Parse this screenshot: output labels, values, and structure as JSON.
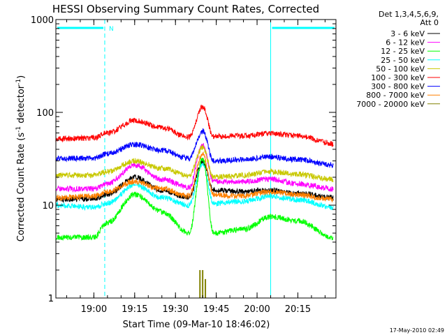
{
  "chart_data": {
    "type": "line",
    "title": "HESSI Observing Summary Count Rates, Corrected",
    "xlabel": "Start Time (09-Mar-10 18:46:02)",
    "ylabel_parts": [
      "Corrected Count Rate (s",
      "-1",
      " detector",
      "-1",
      ")"
    ],
    "x_scale": "time",
    "xlim": [
      "18:46:02",
      "20:29:00"
    ],
    "ylim": [
      1,
      1000
    ],
    "yscale": "log",
    "x_ticks": [
      "19:00",
      "19:15",
      "19:30",
      "19:45",
      "20:00",
      "20:15"
    ],
    "y_ticks": [
      {
        "value": 1,
        "label": "1"
      },
      {
        "value": 10,
        "label": "10"
      },
      {
        "value": 100,
        "label": "100"
      },
      {
        "value": 1000,
        "label": "1000"
      }
    ],
    "grid": false,
    "legend_header": [
      "Det 1,3,4,5,6,9,",
      "Att 0"
    ],
    "legend_position": "right",
    "date_stamp": "17-May-2010 02:49",
    "night_periods": [
      {
        "start": "18:46:02",
        "end": "19:04:00",
        "label": "N"
      },
      {
        "start": "20:05:00",
        "end": "20:29:00",
        "label": ""
      }
    ],
    "series": [
      {
        "name": "3 - 6 keV",
        "color": "#000000",
        "points": [
          [
            "18:46",
            11.5
          ],
          [
            "19:00",
            11.8
          ],
          [
            "19:05",
            13
          ],
          [
            "19:15",
            20
          ],
          [
            "19:25",
            14.5
          ],
          [
            "19:35",
            12
          ],
          [
            "19:40",
            30
          ],
          [
            "19:44",
            14.5
          ],
          [
            "19:55",
            14
          ],
          [
            "20:05",
            14.5
          ],
          [
            "20:15",
            13.5
          ],
          [
            "20:28",
            12
          ]
        ]
      },
      {
        "name": "6 - 12 keV",
        "color": "#ff00ff",
        "points": [
          [
            "18:46",
            15
          ],
          [
            "19:00",
            15
          ],
          [
            "19:05",
            17
          ],
          [
            "19:15",
            27
          ],
          [
            "19:25",
            19
          ],
          [
            "19:35",
            15.5
          ],
          [
            "19:40",
            45
          ],
          [
            "19:44",
            18
          ],
          [
            "19:55",
            18
          ],
          [
            "20:05",
            19
          ],
          [
            "20:15",
            17
          ],
          [
            "20:28",
            15
          ]
        ]
      },
      {
        "name": "12 - 25 keV",
        "color": "#00ff00",
        "points": [
          [
            "18:46",
            4.5
          ],
          [
            "19:00",
            4.5
          ],
          [
            "19:05",
            6.5
          ],
          [
            "19:15",
            13
          ],
          [
            "19:25",
            8.5
          ],
          [
            "19:35",
            5
          ],
          [
            "19:40",
            32
          ],
          [
            "19:44",
            5
          ],
          [
            "19:55",
            5.5
          ],
          [
            "20:05",
            7.5
          ],
          [
            "20:15",
            6.8
          ],
          [
            "20:28",
            4.5
          ]
        ]
      },
      {
        "name": "25 - 50 keV",
        "color": "#00ffff",
        "points": [
          [
            "18:46",
            10
          ],
          [
            "19:00",
            9.5
          ],
          [
            "19:05",
            10.5
          ],
          [
            "19:15",
            16.5
          ],
          [
            "19:25",
            12
          ],
          [
            "19:35",
            10
          ],
          [
            "19:40",
            28
          ],
          [
            "19:44",
            10.5
          ],
          [
            "19:55",
            11
          ],
          [
            "20:05",
            12.5
          ],
          [
            "20:15",
            11.5
          ],
          [
            "20:28",
            9.5
          ]
        ]
      },
      {
        "name": "50 - 100 keV",
        "color": "#c8c800",
        "points": [
          [
            "18:46",
            21
          ],
          [
            "19:00",
            21
          ],
          [
            "19:05",
            23
          ],
          [
            "19:15",
            30
          ],
          [
            "19:25",
            25
          ],
          [
            "19:35",
            21
          ],
          [
            "19:40",
            42
          ],
          [
            "19:44",
            20
          ],
          [
            "19:55",
            21
          ],
          [
            "20:05",
            23
          ],
          [
            "20:15",
            21.5
          ],
          [
            "20:28",
            19
          ]
        ]
      },
      {
        "name": "100 - 300 keV",
        "color": "#ff0000",
        "points": [
          [
            "18:46",
            52
          ],
          [
            "19:00",
            53
          ],
          [
            "19:05",
            60
          ],
          [
            "19:15",
            82
          ],
          [
            "19:25",
            68
          ],
          [
            "19:35",
            54
          ],
          [
            "19:40",
            115
          ],
          [
            "19:44",
            55
          ],
          [
            "19:55",
            56
          ],
          [
            "20:05",
            59
          ],
          [
            "20:15",
            56
          ],
          [
            "20:28",
            46
          ]
        ]
      },
      {
        "name": "300 - 800 keV",
        "color": "#0000ff",
        "points": [
          [
            "18:46",
            32
          ],
          [
            "19:00",
            32
          ],
          [
            "19:05",
            36
          ],
          [
            "19:15",
            45
          ],
          [
            "19:25",
            39
          ],
          [
            "19:35",
            32
          ],
          [
            "19:40",
            63
          ],
          [
            "19:44",
            30
          ],
          [
            "19:55",
            31
          ],
          [
            "20:05",
            33
          ],
          [
            "20:15",
            31
          ],
          [
            "20:28",
            27
          ]
        ]
      },
      {
        "name": "800 - 7000 keV",
        "color": "#ff8000",
        "points": [
          [
            "18:46",
            12
          ],
          [
            "19:00",
            12.5
          ],
          [
            "19:05",
            14
          ],
          [
            "19:15",
            18
          ],
          [
            "19:25",
            15
          ],
          [
            "19:35",
            12.5
          ],
          [
            "19:40",
            35
          ],
          [
            "19:44",
            13
          ],
          [
            "19:55",
            12.5
          ],
          [
            "20:05",
            14
          ],
          [
            "20:15",
            13
          ],
          [
            "20:28",
            11.5
          ]
        ]
      },
      {
        "name": "7000 - 20000 keV",
        "color": "#808000",
        "points": [
          [
            "19:39",
            2
          ],
          [
            "19:40",
            2
          ],
          [
            "19:41",
            1.6
          ]
        ]
      }
    ]
  }
}
